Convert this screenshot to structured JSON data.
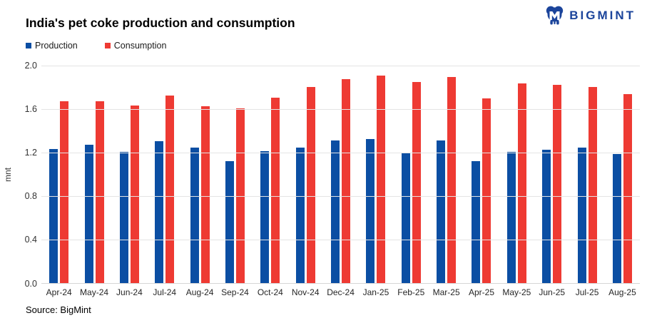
{
  "logo": {
    "text": "BIGMINT",
    "color": "#1B449B"
  },
  "chart_data": {
    "type": "bar",
    "title": "India's pet coke production and consumption",
    "ylabel": "mnt",
    "source": "Source: BigMint",
    "grid": true,
    "legend_position": "top-left",
    "ylim": [
      0,
      2.0
    ],
    "yticks": [
      0.0,
      0.4,
      0.8,
      1.2,
      1.6,
      2.0
    ],
    "categories": [
      "Apr-24",
      "May-24",
      "Jun-24",
      "Jul-24",
      "Aug-24",
      "Sep-24",
      "Oct-24",
      "Nov-24",
      "Dec-24",
      "Jan-25",
      "Feb-25",
      "Mar-25",
      "Apr-25",
      "May-25",
      "Jun-25",
      "Jul-25",
      "Aug-25"
    ],
    "series": [
      {
        "name": "Production",
        "color": "#0B4EA3",
        "values": [
          1.23,
          1.27,
          1.2,
          1.3,
          1.24,
          1.12,
          1.21,
          1.24,
          1.31,
          1.32,
          1.19,
          1.31,
          1.12,
          1.2,
          1.22,
          1.24,
          1.18
        ]
      },
      {
        "name": "Consumption",
        "color": "#EE3A33",
        "values": [
          1.67,
          1.67,
          1.63,
          1.72,
          1.62,
          1.6,
          1.7,
          1.8,
          1.87,
          1.9,
          1.84,
          1.89,
          1.69,
          1.83,
          1.82,
          1.8,
          1.73
        ]
      }
    ]
  }
}
